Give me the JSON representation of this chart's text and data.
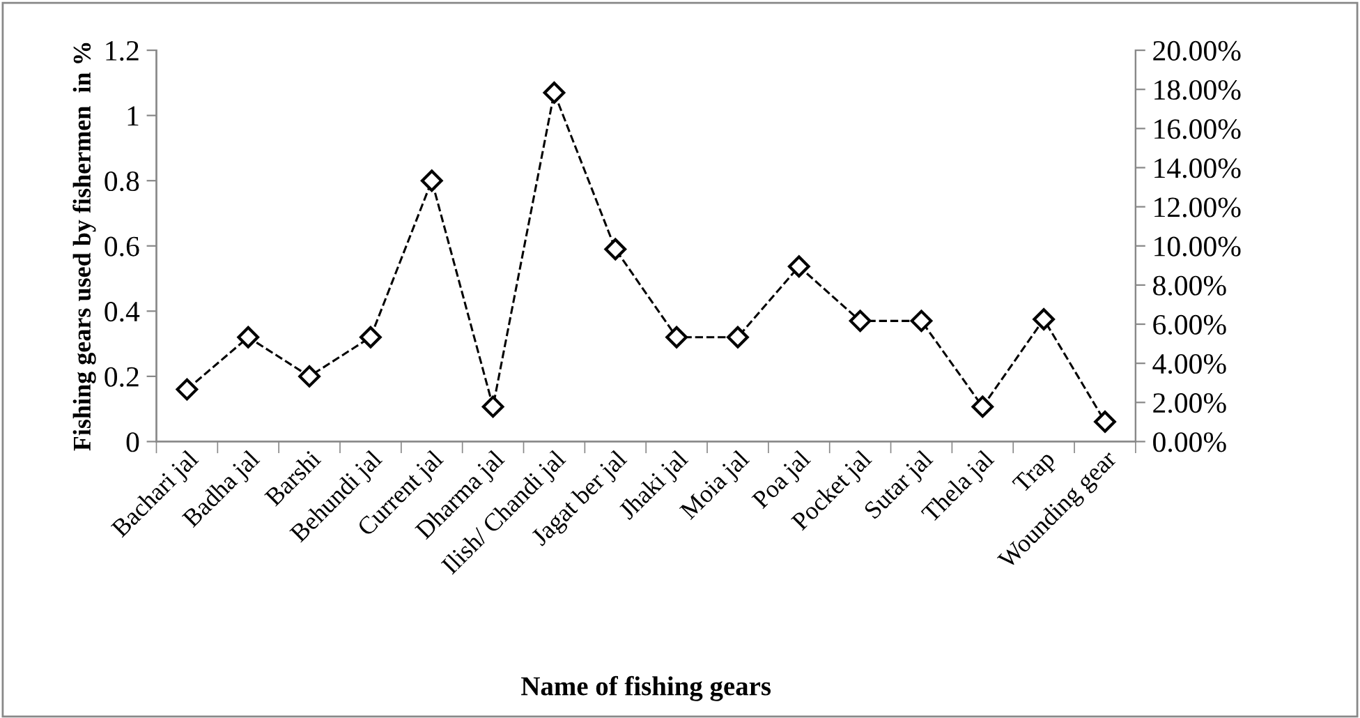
{
  "chart_data": {
    "type": "line",
    "xlabel": "Name of fishing gears",
    "ylabel": "Fishing gears used by fishermen  in %",
    "categories": [
      "Bachari jal",
      "Badha jal",
      "Barshi",
      "Behundi jal",
      "Current jal",
      "Dharma jal",
      "Ilish/ Chandi jal",
      "Jagat ber jal",
      "Jhaki jal",
      "Moia jal",
      "Poa jal",
      "Pocket jal",
      "Sutar jal",
      "Thela jal",
      "Trap",
      "Wounding gear"
    ],
    "series": [
      {
        "color": "#000000",
        "values": [
          0.16,
          0.32,
          0.2,
          0.32,
          0.8,
          0.107,
          1.07,
          0.59,
          0.32,
          0.32,
          0.537,
          0.37,
          0.37,
          0.107,
          0.375,
          0.061
        ]
      }
    ],
    "ylim": [
      0,
      1.2
    ],
    "yticks": [
      0,
      0.2,
      0.4,
      0.6,
      0.8,
      1,
      1.2
    ],
    "y2lim": [
      0,
      20
    ],
    "y2ticks": [
      {
        "value": 0,
        "label": "0.00%"
      },
      {
        "value": 2,
        "label": "2.00%"
      },
      {
        "value": 4,
        "label": "4.00%"
      },
      {
        "value": 6,
        "label": "6.00%"
      },
      {
        "value": 8,
        "label": "8.00%"
      },
      {
        "value": 10,
        "label": "10.00%"
      },
      {
        "value": 12,
        "label": "12.00%"
      },
      {
        "value": 14,
        "label": "14.00%"
      },
      {
        "value": 16,
        "label": "16.00%"
      },
      {
        "value": 18,
        "label": "18.00%"
      },
      {
        "value": 20,
        "label": "20.00%"
      }
    ],
    "marker": "diamond",
    "line_style": "dashed",
    "grid": false,
    "legend": false
  }
}
